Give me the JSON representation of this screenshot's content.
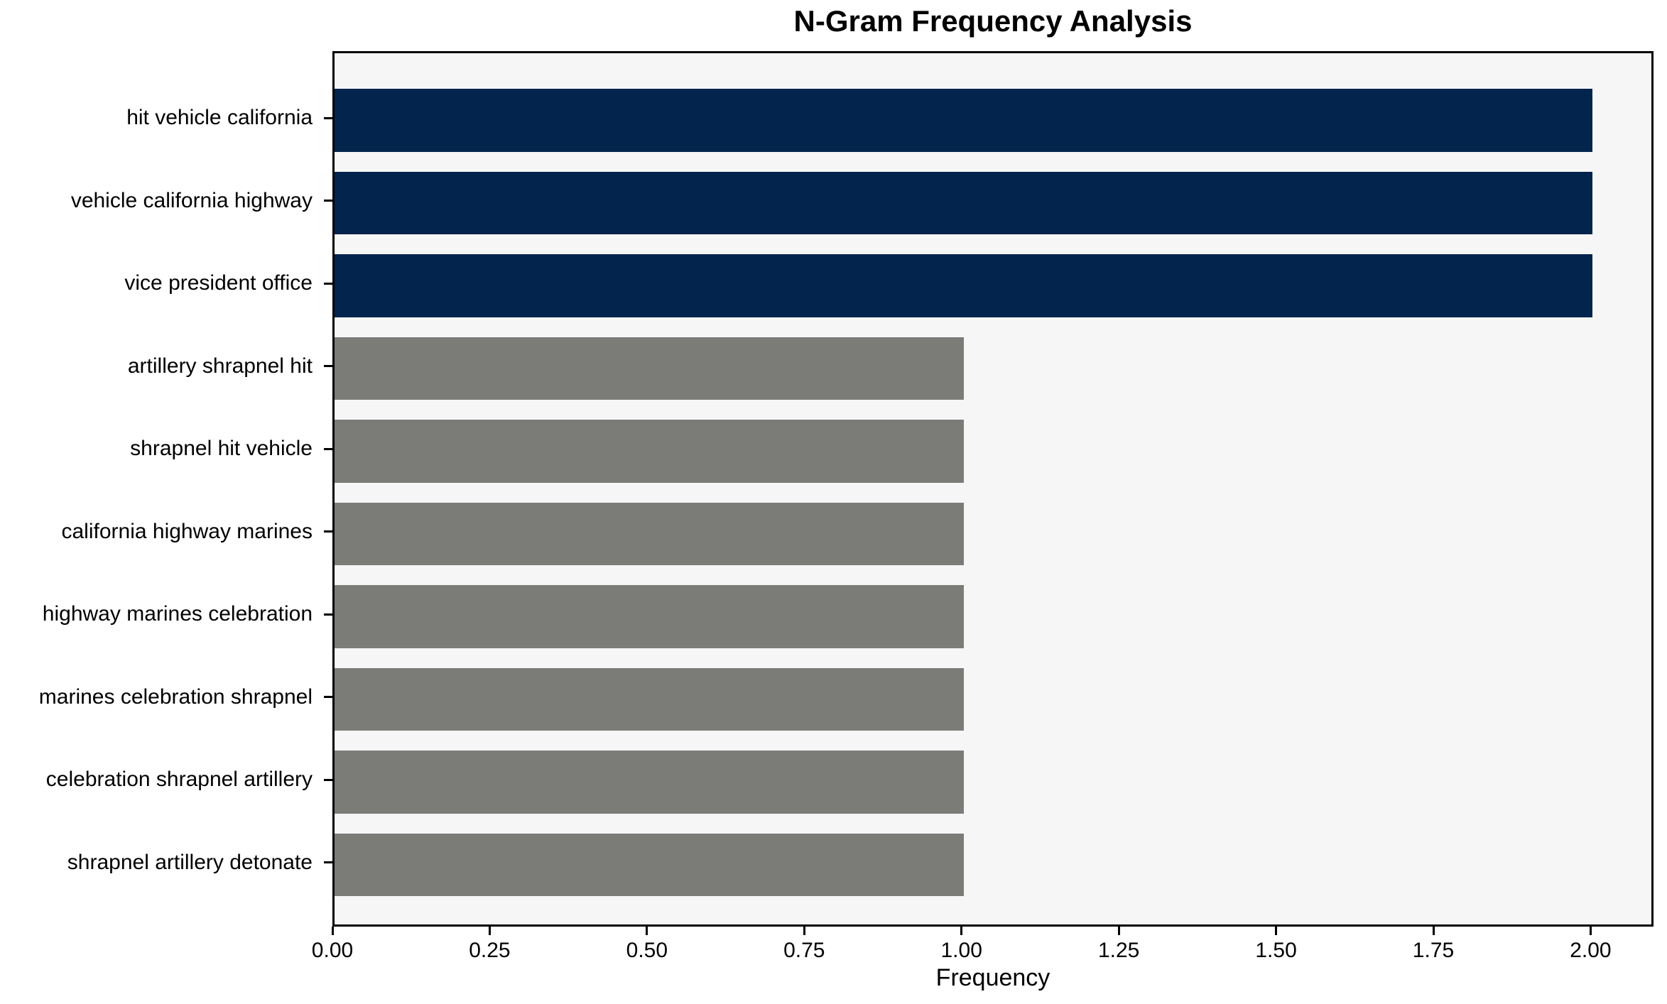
{
  "title": "N-Gram Frequency Analysis",
  "colors": {
    "figure_bg": "#FFFFFF",
    "plot_bg": "#F6F6F6",
    "spine": "#000000",
    "text": "#000000",
    "bar_high": "#02244D",
    "bar_low": "#7B7B78"
  },
  "chart_data": {
    "type": "bar",
    "orientation": "horizontal",
    "title": "N-Gram Frequency Analysis",
    "xlabel": "Frequency",
    "ylabel": "",
    "grid": false,
    "legend": "none",
    "xlim": [
      0,
      2.1
    ],
    "categories": [
      "hit vehicle california",
      "vehicle california highway",
      "vice president office",
      "artillery shrapnel hit",
      "shrapnel hit vehicle",
      "california highway marines",
      "highway marines celebration",
      "marines celebration shrapnel",
      "celebration shrapnel artillery",
      "shrapnel artillery detonate"
    ],
    "values": [
      2,
      2,
      2,
      1,
      1,
      1,
      1,
      1,
      1,
      1
    ],
    "bar_colors": [
      "#02244D",
      "#02244D",
      "#02244D",
      "#7B7B78",
      "#7B7B78",
      "#7B7B78",
      "#7B7B78",
      "#7B7B78",
      "#7B7B78",
      "#7B7B78"
    ],
    "xtick_values": [
      0,
      0.25,
      0.5,
      0.75,
      1.0,
      1.25,
      1.5,
      1.75,
      2.0
    ],
    "xtick_labels": [
      "0.00",
      "0.25",
      "0.50",
      "0.75",
      "1.00",
      "1.25",
      "1.50",
      "1.75",
      "2.00"
    ]
  }
}
